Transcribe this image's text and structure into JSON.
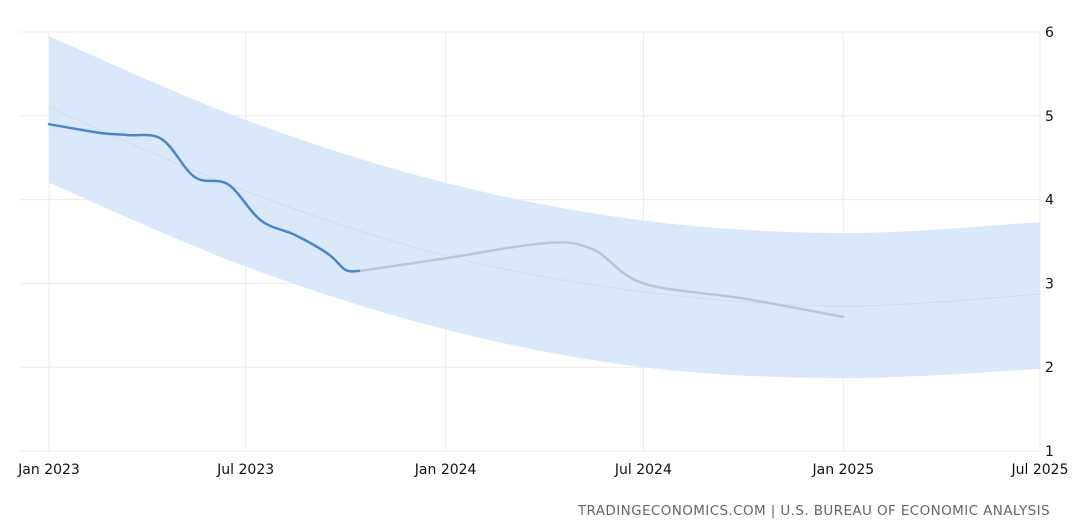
{
  "chart_data": {
    "type": "line",
    "x_ticks": [
      "Jan 2023",
      "Jul 2023",
      "Jan 2024",
      "Jul 2024",
      "Jan 2025",
      "Jul 2025"
    ],
    "y_ticks": [
      "1",
      "2",
      "3",
      "4",
      "5",
      "6"
    ],
    "ylim": [
      1,
      6
    ],
    "xlim": [
      "2023-01-01",
      "2025-07-01"
    ],
    "grid": true,
    "series": [
      {
        "role": "actual",
        "color": "#4a86c5",
        "points": [
          [
            "2023-01-01",
            4.9
          ],
          [
            "2023-02-15",
            4.8
          ],
          [
            "2023-03-15",
            4.77
          ],
          [
            "2023-04-15",
            4.72
          ],
          [
            "2023-05-15",
            4.27
          ],
          [
            "2023-06-15",
            4.18
          ],
          [
            "2023-07-15",
            3.75
          ],
          [
            "2023-08-15",
            3.58
          ],
          [
            "2023-09-15",
            3.35
          ],
          [
            "2023-10-01",
            3.16
          ],
          [
            "2023-10-15",
            3.15
          ]
        ]
      },
      {
        "role": "forecast",
        "color": "#b9c6d6",
        "points": [
          [
            "2023-10-15",
            3.15
          ],
          [
            "2024-01-01",
            3.3
          ],
          [
            "2024-04-01",
            3.48
          ],
          [
            "2024-05-15",
            3.41
          ],
          [
            "2024-07-01",
            3.0
          ],
          [
            "2024-10-01",
            2.82
          ],
          [
            "2025-01-01",
            2.6
          ]
        ]
      },
      {
        "role": "trend",
        "color": "#d6dbe2",
        "points": [
          [
            "2023-01-01",
            5.1
          ],
          [
            "2023-07-01",
            4.1
          ],
          [
            "2024-01-01",
            3.33
          ],
          [
            "2024-07-01",
            2.9
          ],
          [
            "2025-01-01",
            2.73
          ],
          [
            "2025-07-01",
            2.87
          ]
        ]
      }
    ],
    "band": {
      "color": "#dae8fb",
      "upper": [
        [
          "2023-01-01",
          5.95
        ],
        [
          "2023-07-01",
          4.95
        ],
        [
          "2024-01-01",
          4.2
        ],
        [
          "2024-07-01",
          3.75
        ],
        [
          "2025-01-01",
          3.6
        ],
        [
          "2025-07-01",
          3.73
        ]
      ],
      "lower": [
        [
          "2023-01-01",
          4.2
        ],
        [
          "2023-07-01",
          3.2
        ],
        [
          "2024-01-01",
          2.45
        ],
        [
          "2024-07-01",
          2.0
        ],
        [
          "2025-01-01",
          1.87
        ],
        [
          "2025-07-01",
          1.98
        ]
      ]
    }
  },
  "source_label": "TRADINGECONOMICS.COM | U.S. BUREAU OF ECONOMIC ANALYSIS"
}
